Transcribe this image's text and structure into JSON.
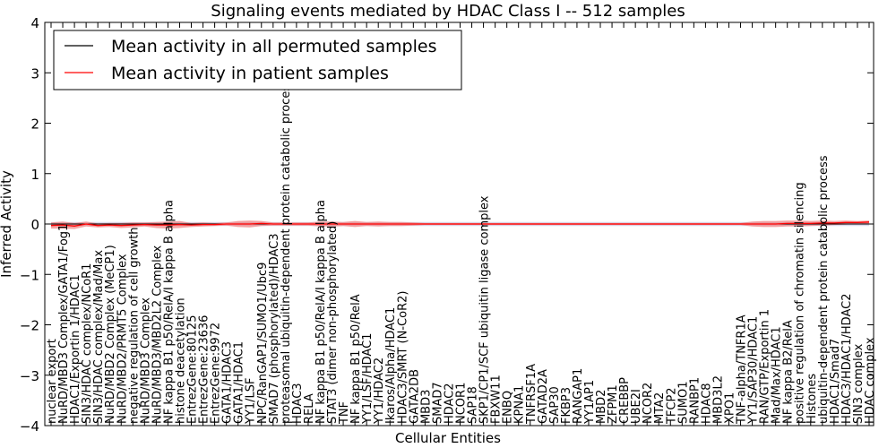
{
  "chart_data": {
    "type": "line",
    "title": "Signaling events mediated by HDAC Class I -- 512 samples",
    "xlabel": "Cellular Entities",
    "ylabel": "Inferred Activity",
    "ylim": [
      -4,
      4
    ],
    "yticks": [
      -4,
      -3,
      -2,
      -1,
      0,
      1,
      2,
      3,
      4
    ],
    "legend": {
      "placement": "top-left",
      "entries": [
        {
          "label": "Mean activity in all permuted samples",
          "color": "#000000"
        },
        {
          "label": "Mean activity in patient samples",
          "color": "#ff0000"
        }
      ]
    },
    "categories": [
      "nuclear export",
      "NuRD/MBD3 Complex/GATA1/Fog1",
      "HDAC1/Exportin 1/HDAC1",
      "SIN3/HDAC complex/NCoR1",
      "SIN3/HDAC complex/Mad/Max",
      "NuRD/MBD2 Complex (MeCP1)",
      "NuRD/MBD2/PRMT5 Complex",
      "negative regulation of cell growth",
      "NuRD/MBD3 Complex",
      "NuRD/MBD3/MBD2L2 Complex",
      "NF kappa B1 p50/RelA/I kappa B alpha",
      "histone deacetylation",
      "EntrezGene:80125",
      "EntrezGene:23636",
      "EntrezGene:9972",
      "GATA1/HDAC3",
      "GATA1/HDAC1",
      "YY1/LSF",
      "NPC/RanGAP1/SUMO1/Ubc9",
      "SMAD7 (phosphorylated)/HDAC3",
      "proteasomal ubiquitin-dependent protein catabolic process",
      "HDAC3",
      "RELA",
      "NF kappa B1 p50/RelA/I kappa B alpha",
      "STAT3 (dimer non-phosphorylated)",
      "TNF",
      "NF kappa B1 p50/RelA",
      "YY1/LSF/HDAC1",
      "YY1/HDAC2",
      "Ikaros/Alpha/HDAC1",
      "HDAC3/SMRT (N-CoR2)",
      "GATA2DB",
      "MBD3",
      "SMAD7",
      "HDAC2",
      "NCOR1",
      "SAP18",
      "SKP1/CP1/SCF ubiquitin ligase complex",
      "FBXW11",
      "ENBQ",
      "KPNA1",
      "TNFRSF1A",
      "GATAD2A",
      "SAP30",
      "FKBP3",
      "RANGAP1",
      "YY1AP1",
      "MBD2",
      "ZFPM1",
      "CREBBP",
      "UBE2I",
      "NCOR2",
      "MTA2",
      "TFCP2",
      "SUMO1",
      "RANBP1",
      "HDAC8",
      "MBD3L2",
      "XPO1",
      "TNF-alpha/TNFR1A",
      "YY1/SAP30/HDAC1",
      "RAN/GTP/Exportin 1",
      "Mad/Max/HDAC1",
      "NF kappa B2/RelA",
      "positive regulation of chromatin silencing",
      "Histones",
      "ubiquitin-dependent protein catabolic process",
      "HDAC1/Smad7",
      "HDAC3/HDAC1/HDAC2",
      "SIN3 complex",
      "HDAC complex"
    ],
    "series": [
      {
        "name": "Mean activity in all permuted samples",
        "values": [
          0.0,
          0.0,
          0.0,
          0.0,
          0.0,
          0.0,
          0.0,
          0.0,
          0.0,
          0.0,
          0.0,
          0.0,
          0.0,
          0.0,
          0.0,
          0.0,
          0.0,
          0.0,
          0.0,
          0.0,
          0.0,
          0.0,
          0.0,
          0.0,
          0.0,
          0.0,
          0.0,
          0.0,
          0.0,
          0.0,
          0.0,
          0.0,
          0.0,
          0.0,
          0.0,
          0.0,
          0.0,
          0.0,
          0.0,
          0.0,
          0.0,
          0.0,
          0.0,
          0.0,
          0.0,
          0.0,
          0.0,
          0.0,
          0.0,
          0.0,
          0.0,
          0.0,
          0.0,
          0.0,
          0.0,
          0.0,
          0.0,
          0.0,
          0.0,
          0.0,
          0.0,
          0.0,
          0.0,
          0.0,
          0.0,
          0.0,
          0.0,
          0.0,
          0.0,
          0.0,
          0.0
        ]
      },
      {
        "name": "Mean activity in patient samples",
        "values": [
          -0.03,
          -0.02,
          -0.04,
          0.0,
          -0.03,
          -0.02,
          -0.03,
          -0.02,
          -0.01,
          -0.02,
          -0.02,
          -0.01,
          -0.02,
          -0.01,
          -0.01,
          0.0,
          0.0,
          0.0,
          0.01,
          0.0,
          0.0,
          0.0,
          0.0,
          0.0,
          0.0,
          0.0,
          0.0,
          0.0,
          0.0,
          0.0,
          0.0,
          0.0,
          0.0,
          0.0,
          0.0,
          0.0,
          0.0,
          0.0,
          0.0,
          0.0,
          0.0,
          0.0,
          0.0,
          0.0,
          0.0,
          0.0,
          0.0,
          0.0,
          0.0,
          0.0,
          0.0,
          0.0,
          0.0,
          0.0,
          0.0,
          0.0,
          0.0,
          0.0,
          0.0,
          0.0,
          0.0,
          0.0,
          0.0,
          0.01,
          0.01,
          0.01,
          0.02,
          0.02,
          0.03,
          0.03,
          0.04
        ]
      }
    ],
    "permuted_band": 0.04,
    "patient_band": [
      0.06,
      0.07,
      0.06,
      0.05,
      0.04,
      0.04,
      0.05,
      0.05,
      0.04,
      0.06,
      0.07,
      0.07,
      0.04,
      0.04,
      0.03,
      0.03,
      0.06,
      0.07,
      0.05,
      0.03,
      0.03,
      0.03,
      0.03,
      0.05,
      0.05,
      0.04,
      0.06,
      0.04,
      0.05,
      0.04,
      0.04,
      0.03,
      0.02,
      0.02,
      0.02,
      0.02,
      0.02,
      0.02,
      0.02,
      0.02,
      0.02,
      0.02,
      0.02,
      0.02,
      0.02,
      0.02,
      0.02,
      0.02,
      0.02,
      0.02,
      0.02,
      0.02,
      0.02,
      0.02,
      0.02,
      0.02,
      0.02,
      0.02,
      0.02,
      0.02,
      0.05,
      0.06,
      0.06,
      0.06,
      0.06,
      0.05,
      0.05,
      0.04,
      0.04,
      0.03,
      0.03
    ],
    "colors": {
      "patient": "#ff0000",
      "permuted": "#000000",
      "patient_band": "#f08080",
      "permuted_band": "#b8b8d8"
    }
  }
}
